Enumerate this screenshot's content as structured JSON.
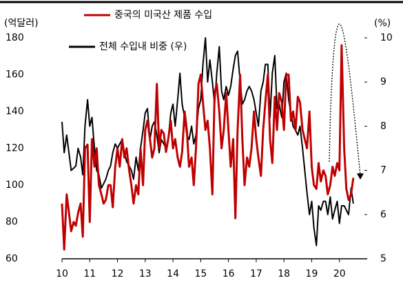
{
  "chart_data": {
    "type": "line",
    "ylabel": "(억달러)",
    "y2label": "(%)",
    "xlim": [
      10,
      21
    ],
    "xticks": [
      10,
      11,
      12,
      13,
      14,
      15,
      16,
      17,
      18,
      19,
      20
    ],
    "ylim": [
      60,
      180
    ],
    "yticks": [
      60,
      80,
      100,
      120,
      140,
      160,
      180
    ],
    "y2lim": [
      5,
      10
    ],
    "y2ticks": [
      5,
      6,
      7,
      8,
      9,
      10
    ],
    "legend": "upper left",
    "x": [
      10,
      10.08,
      10.17,
      10.25,
      10.33,
      10.42,
      10.5,
      10.58,
      10.67,
      10.75,
      10.83,
      10.92,
      11,
      11.08,
      11.17,
      11.25,
      11.33,
      11.42,
      11.5,
      11.58,
      11.67,
      11.75,
      11.83,
      11.92,
      12,
      12.08,
      12.17,
      12.25,
      12.33,
      12.42,
      12.5,
      12.58,
      12.67,
      12.75,
      12.83,
      12.92,
      13,
      13.08,
      13.17,
      13.25,
      13.33,
      13.42,
      13.5,
      13.58,
      13.67,
      13.75,
      13.83,
      13.92,
      14,
      14.08,
      14.17,
      14.25,
      14.33,
      14.42,
      14.5,
      14.58,
      14.67,
      14.75,
      14.83,
      14.92,
      15,
      15.08,
      15.17,
      15.25,
      15.33,
      15.42,
      15.5,
      15.58,
      15.67,
      15.75,
      15.83,
      15.92,
      16,
      16.08,
      16.17,
      16.25,
      16.33,
      16.42,
      16.5,
      16.58,
      16.67,
      16.75,
      16.83,
      16.92,
      17,
      17.08,
      17.17,
      17.25,
      17.33,
      17.42,
      17.5,
      17.58,
      17.67,
      17.75,
      17.83,
      17.92,
      18,
      18.08,
      18.17,
      18.25,
      18.33,
      18.42,
      18.5,
      18.58,
      18.67,
      18.75,
      18.83,
      18.92,
      19,
      19.08,
      19.17,
      19.25,
      19.33,
      19.42,
      19.5,
      19.58,
      19.67,
      19.75,
      19.83,
      19.92,
      20,
      20.08,
      20.17,
      20.25,
      20.33,
      20.42,
      20.5
    ],
    "series": [
      {
        "name": "중국의 미국산 제품 수입",
        "color": "#c00000",
        "axis": "y",
        "values": [
          90,
          65,
          95,
          85,
          75,
          80,
          78,
          85,
          90,
          72,
          120,
          122,
          80,
          125,
          110,
          120,
          100,
          95,
          90,
          92,
          100,
          100,
          88,
          110,
          120,
          110,
          125,
          115,
          120,
          108,
          100,
          90,
          100,
          95,
          120,
          100,
          130,
          135,
          125,
          115,
          120,
          155,
          120,
          130,
          128,
          118,
          125,
          135,
          120,
          125,
          115,
          110,
          118,
          140,
          130,
          110,
          115,
          100,
          120,
          155,
          160,
          145,
          130,
          135,
          120,
          95,
          150,
          155,
          140,
          120,
          130,
          150,
          130,
          110,
          125,
          82,
          130,
          160,
          125,
          100,
          115,
          110,
          120,
          140,
          125,
          115,
          105,
          130,
          145,
          160,
          125,
          112,
          148,
          130,
          150,
          145,
          130,
          160,
          160,
          135,
          140,
          130,
          148,
          145,
          130,
          125,
          120,
          140,
          110,
          100,
          98,
          112,
          102,
          108,
          105,
          95,
          100,
          110,
          105,
          112,
          108,
          176,
          120,
          98,
          92,
          95,
          104
        ]
      },
      {
        "name": "전체 수입내 비중 (우)",
        "color": "#000000",
        "axis": "y2",
        "values": [
          8.1,
          7.4,
          7.8,
          7.4,
          7.0,
          7.05,
          7.1,
          7.5,
          7.3,
          6.9,
          8.0,
          8.6,
          8.0,
          8.2,
          7.5,
          7.0,
          6.9,
          6.6,
          6.7,
          6.8,
          7.0,
          7.1,
          7.4,
          7.6,
          7.5,
          7.6,
          7.7,
          7.4,
          7.2,
          7.1,
          7.0,
          6.8,
          7.3,
          7.0,
          7.5,
          7.9,
          8.3,
          8.4,
          7.7,
          8.0,
          8.1,
          7.8,
          7.4,
          7.7,
          7.6,
          7.5,
          7.7,
          8.3,
          8.5,
          8.0,
          8.6,
          9.2,
          8.5,
          8.2,
          7.8,
          7.7,
          8.0,
          7.6,
          7.8,
          8.4,
          8.6,
          9.4,
          10.0,
          9.0,
          9.5,
          9.0,
          8.5,
          9.2,
          9.8,
          8.8,
          8.6,
          8.9,
          8.7,
          8.9,
          9.3,
          9.6,
          9.7,
          9.0,
          8.5,
          8.6,
          8.8,
          8.9,
          8.8,
          8.6,
          8.3,
          8.0,
          8.8,
          9.0,
          9.4,
          9.4,
          8.2,
          9.2,
          9.6,
          8.4,
          8.5,
          8.2,
          9.0,
          9.2,
          8.6,
          8.3,
          8.0,
          7.9,
          7.8,
          8.0,
          7.5,
          7.0,
          6.5,
          6.0,
          6.3,
          5.7,
          5.3,
          6.2,
          6.1,
          6.3,
          6.3,
          6.0,
          6.4,
          5.9,
          6.1,
          6.3,
          5.8,
          6.2,
          6.2,
          6.1,
          6.0,
          6.6,
          6.25
        ]
      }
    ]
  }
}
